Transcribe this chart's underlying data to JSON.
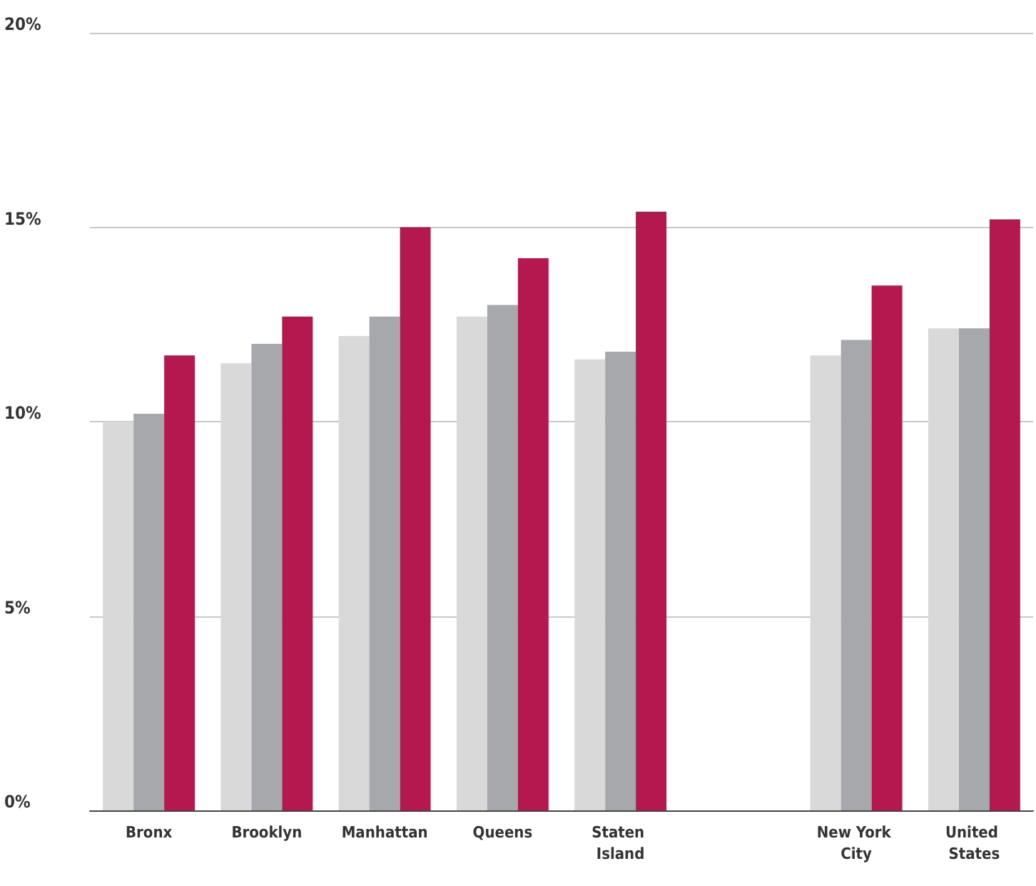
{
  "chart_data": {
    "type": "bar",
    "categories": [
      "Bronx",
      "Brooklyn",
      "Manhattan",
      "Queens",
      "Staten Island",
      null,
      "New York City",
      "United States"
    ],
    "series": [
      {
        "color": "#d9d9d9",
        "values": [
          10.0,
          11.5,
          12.2,
          12.7,
          11.6,
          null,
          11.7,
          12.4
        ]
      },
      {
        "color": "#a6a8ab",
        "values": [
          10.2,
          12.0,
          12.7,
          13.0,
          11.8,
          null,
          12.1,
          12.4
        ]
      },
      {
        "color": "#b5174f",
        "values": [
          11.7,
          12.7,
          15.0,
          14.2,
          15.4,
          null,
          13.5,
          15.2
        ]
      }
    ],
    "ylim": [
      0,
      20
    ],
    "yticks": [
      {
        "value": 0,
        "label": "0%"
      },
      {
        "value": 5,
        "label": "5%"
      },
      {
        "value": 10,
        "label": "10%"
      },
      {
        "value": 15,
        "label": "15%"
      },
      {
        "value": 20,
        "label": "20%"
      }
    ],
    "grid": "y"
  }
}
